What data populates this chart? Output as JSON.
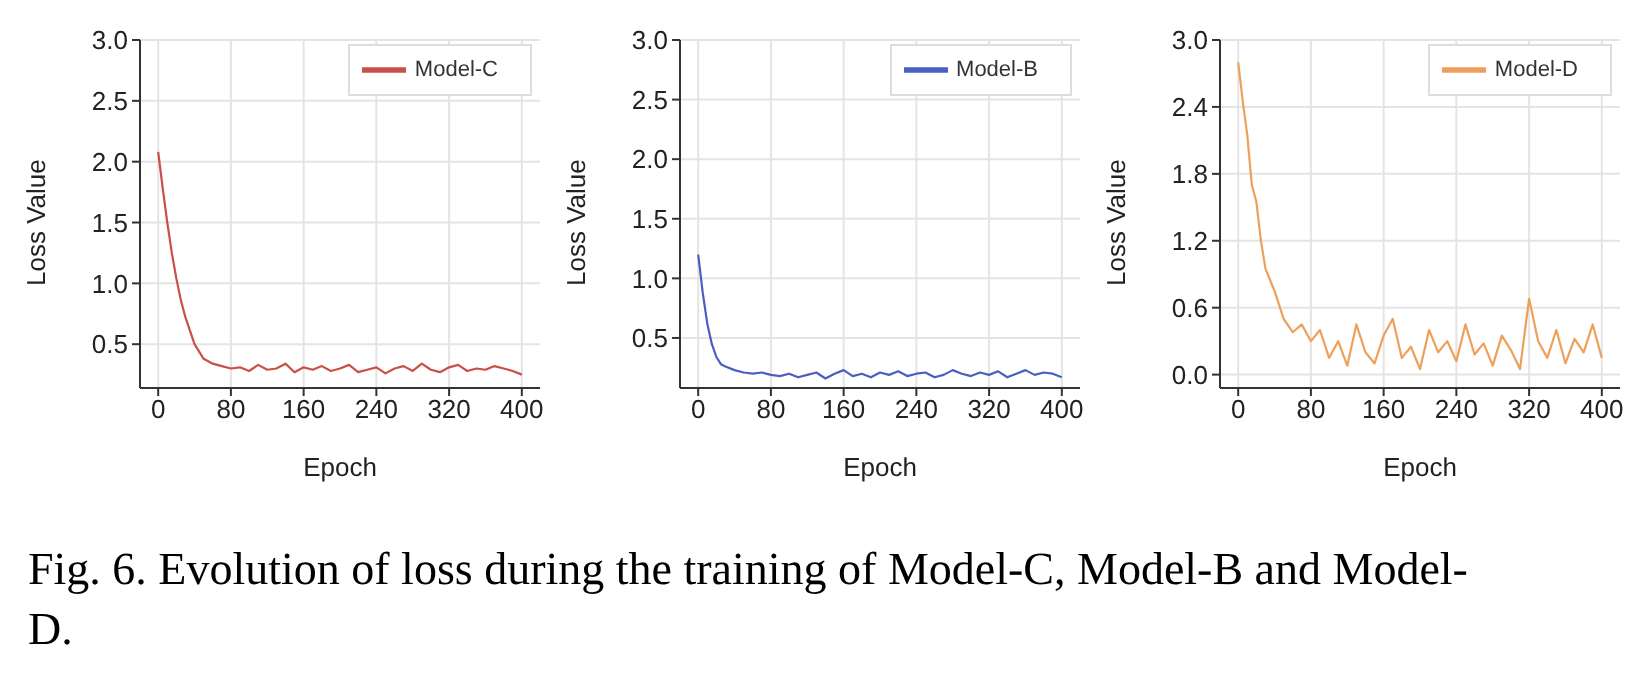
{
  "chart_data": [
    {
      "type": "line",
      "xlabel": "Epoch",
      "ylabel": "Loss Value",
      "x": [
        0,
        5,
        10,
        15,
        20,
        25,
        30,
        40,
        50,
        60,
        70,
        80,
        90,
        100,
        110,
        120,
        130,
        140,
        150,
        160,
        170,
        180,
        190,
        200,
        210,
        220,
        230,
        240,
        250,
        260,
        270,
        280,
        290,
        300,
        310,
        320,
        330,
        340,
        350,
        360,
        370,
        380,
        390,
        400
      ],
      "series": [
        {
          "name": "Model-C",
          "color": "#c9504a",
          "values": [
            2.08,
            1.78,
            1.5,
            1.25,
            1.04,
            0.86,
            0.72,
            0.5,
            0.38,
            0.34,
            0.32,
            0.3,
            0.31,
            0.28,
            0.33,
            0.29,
            0.3,
            0.34,
            0.27,
            0.31,
            0.29,
            0.32,
            0.28,
            0.3,
            0.33,
            0.27,
            0.29,
            0.31,
            0.26,
            0.3,
            0.32,
            0.28,
            0.34,
            0.29,
            0.27,
            0.31,
            0.33,
            0.28,
            0.3,
            0.29,
            0.32,
            0.3,
            0.28,
            0.25
          ]
        }
      ],
      "xlim": [
        -20,
        420
      ],
      "xticks": [
        0,
        80,
        160,
        240,
        320,
        400
      ],
      "ylim": [
        0.14,
        3.0
      ],
      "yticks": [
        0.5,
        {
          "value": 1,
          "label": "1.0"
        },
        1.5,
        {
          "value": 2,
          "label": "2.0"
        },
        2.5,
        {
          "value": 3,
          "label": "3.0"
        }
      ],
      "grid": true,
      "legend": "top right"
    },
    {
      "type": "line",
      "xlabel": "Epoch",
      "ylabel": "Loss Value",
      "x": [
        0,
        5,
        10,
        15,
        20,
        25,
        30,
        40,
        50,
        60,
        70,
        80,
        90,
        100,
        110,
        120,
        130,
        140,
        150,
        160,
        170,
        180,
        190,
        200,
        210,
        220,
        230,
        240,
        250,
        260,
        270,
        280,
        290,
        300,
        310,
        320,
        330,
        340,
        350,
        360,
        370,
        380,
        390,
        400
      ],
      "series": [
        {
          "name": "Model-B",
          "color": "#4a5fc1",
          "values": [
            1.2,
            0.88,
            0.62,
            0.45,
            0.34,
            0.28,
            0.26,
            0.23,
            0.21,
            0.2,
            0.21,
            0.19,
            0.18,
            0.2,
            0.17,
            0.19,
            0.21,
            0.16,
            0.2,
            0.23,
            0.18,
            0.2,
            0.17,
            0.21,
            0.19,
            0.22,
            0.18,
            0.2,
            0.21,
            0.17,
            0.19,
            0.23,
            0.2,
            0.18,
            0.21,
            0.19,
            0.22,
            0.17,
            0.2,
            0.23,
            0.19,
            0.21,
            0.2,
            0.17
          ]
        }
      ],
      "xlim": [
        -20,
        420
      ],
      "xticks": [
        0,
        80,
        160,
        240,
        320,
        400
      ],
      "ylim": [
        0.08,
        3.0
      ],
      "yticks": [
        0.5,
        {
          "value": 1,
          "label": "1.0"
        },
        1.5,
        {
          "value": 2,
          "label": "2.0"
        },
        2.5,
        {
          "value": 3,
          "label": "3.0"
        }
      ],
      "grid": true,
      "legend": "top right"
    },
    {
      "type": "line",
      "xlabel": "Epoch",
      "ylabel": "Loss Value",
      "x": [
        0,
        5,
        10,
        15,
        20,
        25,
        30,
        40,
        50,
        60,
        70,
        80,
        90,
        100,
        110,
        120,
        130,
        140,
        150,
        160,
        170,
        180,
        190,
        200,
        210,
        220,
        230,
        240,
        250,
        260,
        270,
        280,
        290,
        300,
        310,
        320,
        330,
        340,
        350,
        360,
        370,
        380,
        390,
        400
      ],
      "series": [
        {
          "name": "Model-D",
          "color": "#eda05a",
          "values": [
            2.8,
            2.45,
            2.15,
            1.7,
            1.55,
            1.2,
            0.95,
            0.75,
            0.5,
            0.38,
            0.45,
            0.3,
            0.4,
            0.15,
            0.3,
            0.08,
            0.45,
            0.2,
            0.1,
            0.35,
            0.5,
            0.15,
            0.25,
            0.05,
            0.4,
            0.2,
            0.3,
            0.12,
            0.45,
            0.18,
            0.28,
            0.08,
            0.35,
            0.22,
            0.05,
            0.68,
            0.3,
            0.15,
            0.4,
            0.1,
            0.32,
            0.2,
            0.45,
            0.15
          ]
        }
      ],
      "xlim": [
        -20,
        420
      ],
      "xticks": [
        0,
        80,
        160,
        240,
        320,
        400
      ],
      "ylim": [
        -0.12,
        3.0
      ],
      "yticks": [
        {
          "value": 0,
          "label": "0.0"
        },
        {
          "value": 0.6,
          "label": "0.6"
        },
        {
          "value": 1.2,
          "label": "1.2"
        },
        {
          "value": 1.8,
          "label": "1.8"
        },
        {
          "value": 2.4,
          "label": "2.4"
        },
        {
          "value": 3.0,
          "label": "3.0"
        }
      ],
      "grid": true,
      "legend": "top right"
    },
    {
      "type": "other",
      "annotations": [
        "Fig. 6. Evolution of loss during the training of Model-C, Model-B and Model-D."
      ]
    }
  ]
}
